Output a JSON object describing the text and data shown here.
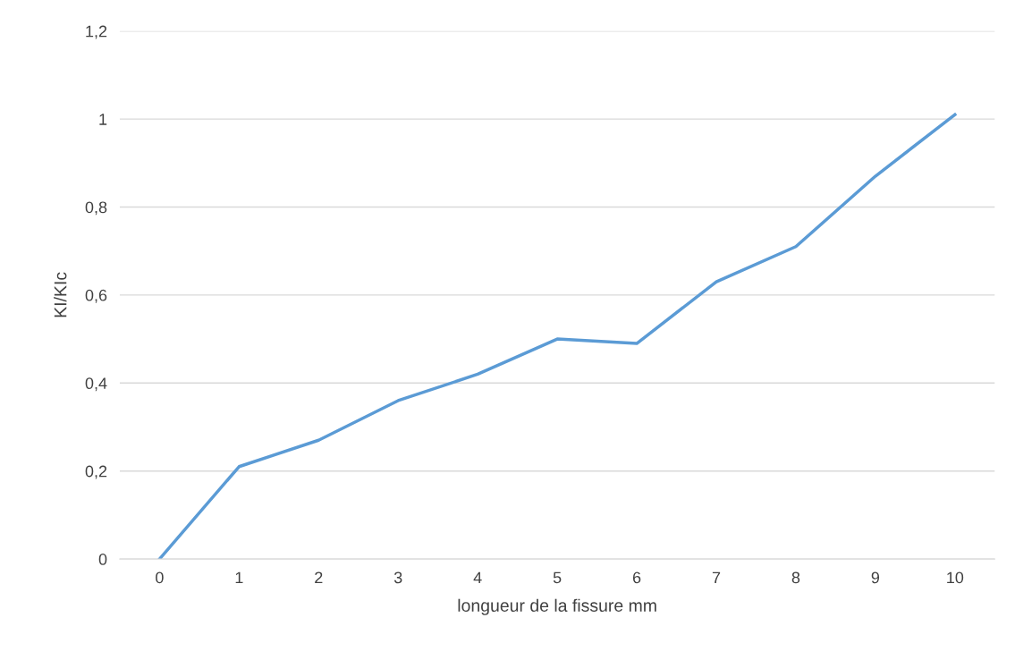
{
  "chart_data": {
    "type": "line",
    "xlabel": "longueur de la fissure mm",
    "ylabel": "KI/KIc",
    "categories": [
      "0",
      "1",
      "2",
      "3",
      "4",
      "5",
      "6",
      "7",
      "8",
      "9",
      "10"
    ],
    "series": [
      {
        "color": "#5b9bd5",
        "values": [
          0,
          0.21,
          0.27,
          0.36,
          0.42,
          0.5,
          0.49,
          0.63,
          0.71,
          0.87,
          1.01
        ]
      }
    ],
    "ylim": [
      0,
      1.2
    ],
    "yticks": [
      0,
      {
        "value": 0.2,
        "label": "0,2"
      },
      {
        "value": 0.4,
        "label": "0,4"
      },
      {
        "value": 0.6,
        "label": "0,6"
      },
      {
        "value": 0.8,
        "label": "0,8"
      },
      1,
      {
        "value": 1.2,
        "label": "1,2"
      }
    ],
    "grid": "y",
    "legend": false,
    "marker": "none",
    "line_style": "solid"
  }
}
